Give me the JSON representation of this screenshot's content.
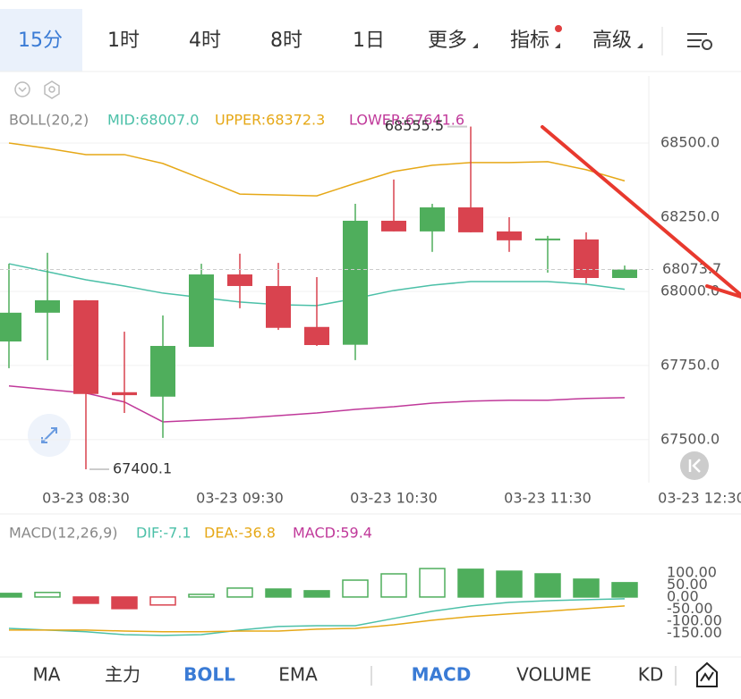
{
  "tabs": [
    "15分",
    "1时",
    "4时",
    "8时",
    "1日",
    "更多",
    "指标",
    "高级"
  ],
  "indicator_tabs": {
    "main": [
      "MA",
      "主力",
      "BOLL",
      "EMA"
    ],
    "sub": [
      "MACD",
      "VOLUME",
      "KD"
    ]
  },
  "chart_data": [
    {
      "type": "candlestick",
      "title": "BOLL(20,2)",
      "categories": [
        null,
        null,
        "03-23 08:30",
        null,
        null,
        null,
        "03-23 09:30",
        null,
        null,
        null,
        "03-23 10:30",
        null,
        null,
        null,
        "03-23 11:30",
        null,
        null,
        null,
        "03-23 12:30"
      ],
      "open": [
        67831,
        67928,
        67970,
        67660,
        67645,
        67813,
        68057,
        68018,
        67880,
        67820,
        68238,
        68202,
        68283,
        68202,
        68175,
        68175,
        68045,
        null,
        null
      ],
      "high": [
        68093,
        68130,
        67970,
        67864,
        67919,
        68093,
        68127,
        68096,
        68048,
        68295,
        68377,
        68295,
        68555.5,
        68250,
        68187,
        68199,
        68087,
        null,
        null
      ],
      "low": [
        67741,
        67768,
        67400.1,
        67590,
        67506,
        67813,
        67943,
        67870,
        67816,
        67768,
        68202,
        68133,
        68199,
        68133,
        68063,
        68027,
        68045,
        null,
        null
      ],
      "close": [
        67928,
        67970,
        67654,
        67650,
        67816,
        68057,
        68018,
        67877,
        67819,
        68238,
        68202,
        68283,
        68199,
        68172,
        68178,
        68045,
        68073.7,
        null,
        null
      ],
      "up_color": "#4fae5c",
      "down_color": "#d9434f",
      "series": [
        {
          "name": "MID:68007.0",
          "color": "#4cc0a8",
          "values": [
            68093,
            68066,
            68039,
            68018,
            67994,
            67979,
            67964,
            67955,
            67952,
            67976,
            68003,
            68021,
            68033,
            68033,
            68033,
            68024,
            68007.0,
            null,
            null
          ]
        },
        {
          "name": "UPPER:68372.3",
          "color": "#e6a817",
          "values": [
            68500,
            68482,
            68461,
            68461,
            68431,
            68380,
            68328,
            68325,
            68322,
            68364,
            68404,
            68425,
            68434,
            68434,
            68437,
            68410,
            68372.3,
            null,
            null
          ]
        },
        {
          "name": "LOWER:67641.6",
          "color": "#c0399a",
          "values": [
            67681,
            67669,
            67657,
            67627,
            67560,
            67566,
            67572,
            67581,
            67590,
            67602,
            67611,
            67623,
            67630,
            67633,
            67633,
            67639,
            67641.6,
            null,
            null
          ]
        }
      ],
      "ylim": [
        67355,
        68726
      ],
      "yticks": [
        {
          "value": 68500,
          "label": "68500.0"
        },
        {
          "value": 68250,
          "label": "68250.0"
        },
        {
          "value": 68000,
          "label": "68000.0"
        },
        {
          "value": 67750,
          "label": "67750.0"
        },
        {
          "value": 67500,
          "label": "67500.0"
        }
      ],
      "grid": true
    },
    {
      "type": "macd",
      "title": "MACD(12,26,9)",
      "up_color": "#4fae5c",
      "down_color": "#d9434f",
      "series": [
        {
          "name": "DIF:-7.1",
          "color": "#4cc0a8",
          "type": "line",
          "values": [
            -130,
            -137,
            -144,
            -156,
            -159,
            -156,
            -137,
            -122,
            -119,
            -119,
            -89,
            -59,
            -37,
            -22,
            -15,
            -11,
            -7.1
          ]
        },
        {
          "name": "DEA:-36.8",
          "color": "#e6a817",
          "type": "line",
          "values": [
            -137,
            -137,
            -137,
            -141,
            -144,
            -144,
            -141,
            -141,
            -133,
            -130,
            -115,
            -96,
            -81,
            -70,
            -59,
            -48,
            -36.8
          ]
        },
        {
          "name": "MACD:59.4",
          "color": "#c0399a",
          "type": "bar",
          "values": [
            15,
            19,
            -26,
            -48,
            -33,
            11,
            37,
            33,
            26,
            70,
            96,
            118,
            115,
            107,
            96,
            74,
            59.4
          ]
        }
      ],
      "ylim": [
        -230,
        196
      ],
      "yticks": [
        {
          "value": 100,
          "label": "100.00"
        },
        {
          "value": 50,
          "label": "50.00"
        },
        {
          "value": 0,
          "label": "0.00"
        },
        {
          "value": -50,
          "label": "-50.00"
        },
        {
          "value": -100,
          "label": "-100.00"
        },
        {
          "value": -150,
          "label": "-150.00"
        }
      ]
    }
  ]
}
